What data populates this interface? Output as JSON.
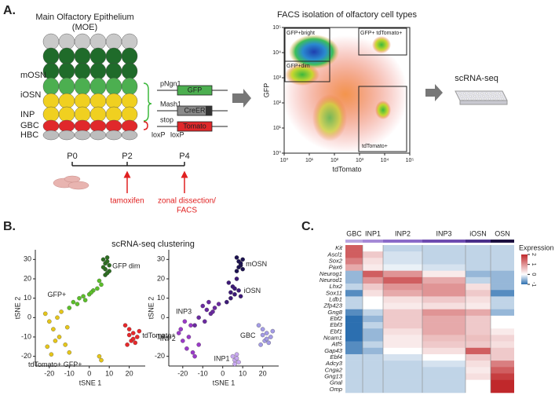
{
  "panel_a": {
    "label": "A.",
    "moe_title": "Main Olfactory Epithelium",
    "moe_subtitle": "(MOE)",
    "cell_layers": [
      "mOSN",
      "iOSN",
      "INP",
      "GBC",
      "HBC"
    ],
    "constructs": [
      {
        "promoter": "pNgn1",
        "gene": "GFP",
        "color": "#4caf50"
      },
      {
        "promoter": "Mash1",
        "gene": "CreER",
        "color": "#8a8a8a"
      },
      {
        "promoter": "stop",
        "gene": "Tomato",
        "color": "#e0282b"
      }
    ],
    "loxp": [
      "loxP",
      "loxP"
    ],
    "timeline": [
      "P0",
      "P2",
      "P4"
    ],
    "events": [
      "tamoxifen",
      "zonal dissection/",
      "FACS"
    ],
    "facs": {
      "title": "FACS isolation of olfactory cell types",
      "xlabel": "tdTomato",
      "ylabel": "GFP",
      "log": true,
      "xlim": [
        1,
        100000
      ],
      "ylim": [
        1,
        100000
      ],
      "xticks": [
        {
          "value": 1,
          "label": "10⁰"
        },
        {
          "value": 10,
          "label": "10¹"
        },
        {
          "value": 100,
          "label": "10²"
        },
        {
          "value": 1000,
          "label": "10³"
        },
        {
          "value": 10000,
          "label": "10⁴"
        },
        {
          "value": 100000,
          "label": "10⁵"
        }
      ],
      "yticks": [
        {
          "value": 1,
          "label": "10⁰"
        },
        {
          "value": 10,
          "label": "10¹"
        },
        {
          "value": 100,
          "label": "10²"
        },
        {
          "value": 1000,
          "label": "10³"
        },
        {
          "value": 10000,
          "label": "10⁴"
        },
        {
          "value": 100000,
          "label": "10⁵"
        }
      ],
      "gates": [
        "GFP+bright",
        "GFP+dim",
        "GFP+ tdTomato+",
        "tdTomato+"
      ]
    },
    "output": "scRNA-seq"
  },
  "panel_b": {
    "label": "B.",
    "title": "scRNA-seq clustering",
    "chart_data": [
      {
        "type": "scatter",
        "xlabel": "tSNE 1",
        "ylabel": "tSNE 2",
        "xlim": [
          -27,
          28
        ],
        "ylim": [
          -25,
          35
        ],
        "xticks": [
          -20,
          -10,
          0,
          10,
          20
        ],
        "yticks": [
          -20,
          -10,
          0,
          10,
          20,
          30
        ],
        "series": [
          {
            "name": "GFP dim",
            "color": "#2d6e22",
            "x": [
              7,
              8,
              9,
              10,
              8,
              7,
              9,
              10,
              8,
              9
            ],
            "y": [
              30,
              28,
              31,
              27,
              25,
              26,
              29,
              24,
              22,
              23
            ]
          },
          {
            "name": "GFP+",
            "color": "#5cbf2a",
            "x": [
              -10,
              -8,
              -5,
              -3,
              0,
              2,
              4,
              6,
              -6,
              -2,
              1,
              5
            ],
            "y": [
              5,
              8,
              10,
              11,
              12,
              14,
              15,
              17,
              7,
              9,
              13,
              19
            ]
          },
          {
            "name": "tdTomato+",
            "color": "#e8282b",
            "x": [
              18,
              20,
              22,
              24,
              21,
              19,
              23,
              25,
              20,
              22
            ],
            "y": [
              -4,
              -6,
              -8,
              -10,
              -12,
              -14,
              -13,
              -7,
              -9,
              -11
            ]
          },
          {
            "name": "tdTomato+ GFP+",
            "color": "#e6c619",
            "x": [
              -22,
              -20,
              -18,
              -15,
              -12,
              -10,
              -21,
              -17,
              -14,
              -11,
              -19,
              -16,
              5,
              6
            ],
            "y": [
              2,
              -2,
              -6,
              -10,
              -14,
              -18,
              -15,
              -12,
              3,
              -5,
              -19,
              0,
              -20,
              -22
            ]
          }
        ]
      },
      {
        "type": "scatter",
        "xlabel": "tSNE 1",
        "ylabel": "tSNE 2",
        "xlim": [
          -27,
          28
        ],
        "ylim": [
          -25,
          35
        ],
        "xticks": [
          -20,
          -10,
          0,
          10,
          20
        ],
        "yticks": [
          -20,
          -10,
          0,
          10,
          20,
          30
        ],
        "series": [
          {
            "name": "mOSN",
            "color": "#1c1250",
            "x": [
              7,
              8,
              9,
              10,
              8,
              7,
              9,
              10
            ],
            "y": [
              31,
              29,
              27,
              30,
              26,
              24,
              28,
              25
            ]
          },
          {
            "name": "iOSN",
            "color": "#3d1a78",
            "x": [
              2,
              4,
              6,
              8,
              5,
              3,
              7,
              9,
              4,
              6
            ],
            "y": [
              8,
              10,
              12,
              14,
              16,
              18,
              20,
              11,
              13,
              15
            ]
          },
          {
            "name": "INP3",
            "color": "#6a2aa0",
            "x": [
              -10,
              -8,
              -6,
              -4,
              -12,
              -14,
              -7,
              -2,
              -9,
              -5
            ],
            "y": [
              6,
              4,
              2,
              5,
              0,
              -4,
              8,
              7,
              -2,
              3
            ]
          },
          {
            "name": "GBC",
            "color": "#a49ce6",
            "x": [
              18,
              20,
              22,
              24,
              21,
              19,
              23,
              25,
              20,
              22
            ],
            "y": [
              -4,
              -6,
              -8,
              -10,
              -12,
              -14,
              -13,
              -7,
              -9,
              -11
            ]
          },
          {
            "name": "INP2",
            "color": "#9a3ac8",
            "x": [
              -22,
              -20,
              -18,
              -15,
              -12,
              -21,
              -17,
              -14,
              -19,
              -16
            ],
            "y": [
              -8,
              -12,
              -16,
              -18,
              -14,
              -6,
              -10,
              -20,
              -2,
              -4
            ]
          },
          {
            "name": "INP1",
            "color": "#c8a8f0",
            "x": [
              5,
              6,
              7,
              8,
              6,
              7
            ],
            "y": [
              -20,
              -22,
              -21,
              -23,
              -24,
              -19
            ]
          }
        ]
      }
    ]
  },
  "panel_c": {
    "label": "C.",
    "chart_data": {
      "type": "heatmap",
      "groups": [
        "GBC",
        "INP1",
        "INP2",
        "INP3",
        "iOSN",
        "OSN"
      ],
      "group_colors": [
        "#b9a6e0",
        "#a58ad6",
        "#8a6ac8",
        "#6d4bb0",
        "#4a2f8a",
        "#1c1040"
      ],
      "genes": [
        "Kit",
        "Ascl1",
        "Sox2",
        "Pax6",
        "Neurog1",
        "Neurod1",
        "Lhx2",
        "Sox11",
        "Ldb1",
        "Zfp423",
        "Gng8",
        "Ebf2",
        "Ebf3",
        "Ebf1",
        "Ncam1",
        "Atf5",
        "Gap43",
        "Ebf4",
        "Adcy3",
        "Cnga2",
        "Gng13",
        "Gnal",
        "Omp"
      ],
      "values": [
        [
          1.5,
          0,
          -0.3,
          -0.3,
          -0.3,
          -0.3
        ],
        [
          1.5,
          0.5,
          -0.2,
          -0.3,
          -0.3,
          -0.3
        ],
        [
          1.2,
          0.3,
          -0.2,
          -0.3,
          -0.3,
          -0.3
        ],
        [
          0.8,
          0.2,
          -0.1,
          -0.2,
          -0.3,
          -0.3
        ],
        [
          -0.5,
          1.5,
          1,
          0.2,
          -0.5,
          -0.5
        ],
        [
          -0.5,
          1,
          1.5,
          0.8,
          -0.3,
          -0.5
        ],
        [
          -0.3,
          0.5,
          1,
          1,
          0.3,
          -0.5
        ],
        [
          -0.8,
          0.3,
          0.8,
          1,
          0.5,
          -0.8
        ],
        [
          -0.3,
          0,
          0.3,
          0.5,
          0.3,
          -0.3
        ],
        [
          -0.3,
          0,
          0.2,
          0.3,
          0.2,
          -0.3
        ],
        [
          -0.8,
          -0.3,
          0.5,
          1,
          0.8,
          -0.5
        ],
        [
          -1,
          -0.5,
          0.5,
          0.8,
          0.5,
          0
        ],
        [
          -1,
          -0.3,
          0.5,
          0.8,
          0.5,
          0
        ],
        [
          -1,
          -0.5,
          0.3,
          0.8,
          0.5,
          0.2
        ],
        [
          -1,
          -0.5,
          0.2,
          0.6,
          0.6,
          0.4
        ],
        [
          -0.8,
          -0.3,
          0.2,
          0.5,
          0.5,
          0.3
        ],
        [
          -0.8,
          -0.5,
          0,
          0.3,
          1.5,
          0.5
        ],
        [
          -0.3,
          -0.3,
          -0.2,
          0,
          0.5,
          0.5
        ],
        [
          -0.3,
          -0.3,
          -0.3,
          -0.2,
          0.3,
          1.2
        ],
        [
          -0.3,
          -0.3,
          -0.3,
          -0.3,
          0.2,
          1.5
        ],
        [
          -0.3,
          -0.3,
          -0.3,
          -0.3,
          0.3,
          1.8
        ],
        [
          -0.3,
          -0.3,
          -0.3,
          -0.3,
          0,
          2
        ],
        [
          -0.3,
          -0.3,
          -0.3,
          -0.3,
          0,
          2
        ]
      ],
      "legend_title": "Expression",
      "clim": [
        -1,
        2
      ],
      "cticks": [
        2,
        1,
        0,
        -1
      ]
    }
  }
}
